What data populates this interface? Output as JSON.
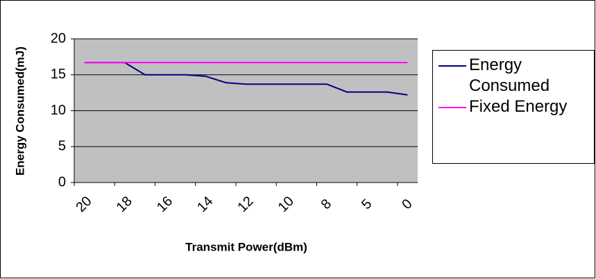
{
  "chart_data": {
    "type": "line",
    "x_label": "Transmit Power(dBm)",
    "y_label": "Energy Consumed(mJ)",
    "categories": [
      "20",
      null,
      "18",
      null,
      "16",
      null,
      "14",
      null,
      "12",
      null,
      "10",
      null,
      "8",
      null,
      "5",
      null,
      "0"
    ],
    "series": [
      {
        "name": "Energy Consumed",
        "color": "#000080",
        "values": [
          16.7,
          16.7,
          16.7,
          15.0,
          15.0,
          15.0,
          14.8,
          13.9,
          13.7,
          13.7,
          13.7,
          13.7,
          13.7,
          12.6,
          12.6,
          12.6,
          12.2
        ]
      },
      {
        "name": "Fixed Energy",
        "color": "#ff00ff",
        "values": [
          16.7,
          16.7,
          16.7,
          16.7,
          16.7,
          16.7,
          16.7,
          16.7,
          16.7,
          16.7,
          16.7,
          16.7,
          16.7,
          16.7,
          16.7,
          16.7,
          16.7
        ]
      }
    ],
    "ylim": [
      0,
      20
    ],
    "yticks": [
      0,
      5,
      10,
      15,
      20
    ],
    "grid": true,
    "plot_background": "#c0c0c0",
    "legend": "right"
  }
}
